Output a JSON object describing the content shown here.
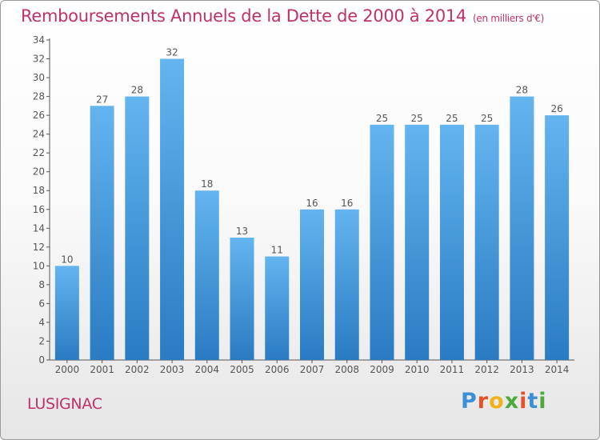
{
  "page": {
    "title": "Remboursements Annuels de la Dette de 2000 à 2014",
    "subtitle": "(en milliers d'€)",
    "commune": "LUSIGNAC",
    "logo": {
      "letters": [
        {
          "char": "P",
          "color": "#3a8fd6"
        },
        {
          "char": "r",
          "color": "#e8502a"
        },
        {
          "char": "o",
          "color": "#f2b21c"
        },
        {
          "char": "x",
          "color": "#4caa3c"
        },
        {
          "char": "i",
          "color": "#e8502a"
        },
        {
          "char": "t",
          "color": "#3a8fd6"
        },
        {
          "char": "i",
          "color": "#4caa3c"
        }
      ]
    }
  },
  "chart_data": {
    "type": "bar",
    "categories": [
      "2000",
      "2001",
      "2002",
      "2003",
      "2004",
      "2005",
      "2006",
      "2007",
      "2008",
      "2009",
      "2010",
      "2011",
      "2012",
      "2013",
      "2014"
    ],
    "values": [
      10,
      27,
      28,
      32,
      18,
      13,
      11,
      16,
      16,
      25,
      25,
      25,
      25,
      28,
      26
    ],
    "data_labels": [
      "10",
      "27",
      "28",
      "32",
      "18",
      "13",
      "11",
      "16",
      "16",
      "25",
      "25",
      "25",
      "25",
      "28",
      "26"
    ],
    "yticks": [
      0,
      2,
      4,
      6,
      8,
      10,
      12,
      14,
      16,
      18,
      20,
      22,
      24,
      26,
      28,
      30,
      32,
      34
    ],
    "ylim": [
      0,
      34
    ],
    "grid": false,
    "legend": "none",
    "colors": {
      "bar_light": "#63b4ef",
      "bar_dark": "#2a7bc2",
      "axis": "#555555",
      "label": "#555555"
    }
  }
}
